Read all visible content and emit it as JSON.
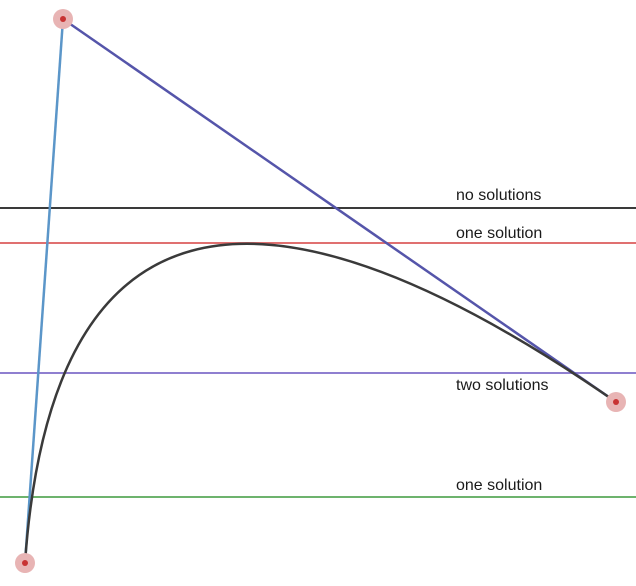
{
  "diagram": {
    "labels": {
      "no_solutions": "no solutions",
      "one_solution_top": "one solution",
      "two_solutions": "two solutions",
      "one_solution_bottom": "one solution"
    },
    "colors": {
      "no_solutions_line": "#3a3a3a",
      "one_solution_top_line": "#e07070",
      "two_solutions_line": "#8f7fd0",
      "one_solution_bottom_line": "#6db36d",
      "curve": "#3a3a3a",
      "handle_start": "#5b96c9",
      "handle_end": "#5555aa",
      "control_point": "#e8b4b4",
      "control_point_center": "#c83232"
    }
  }
}
